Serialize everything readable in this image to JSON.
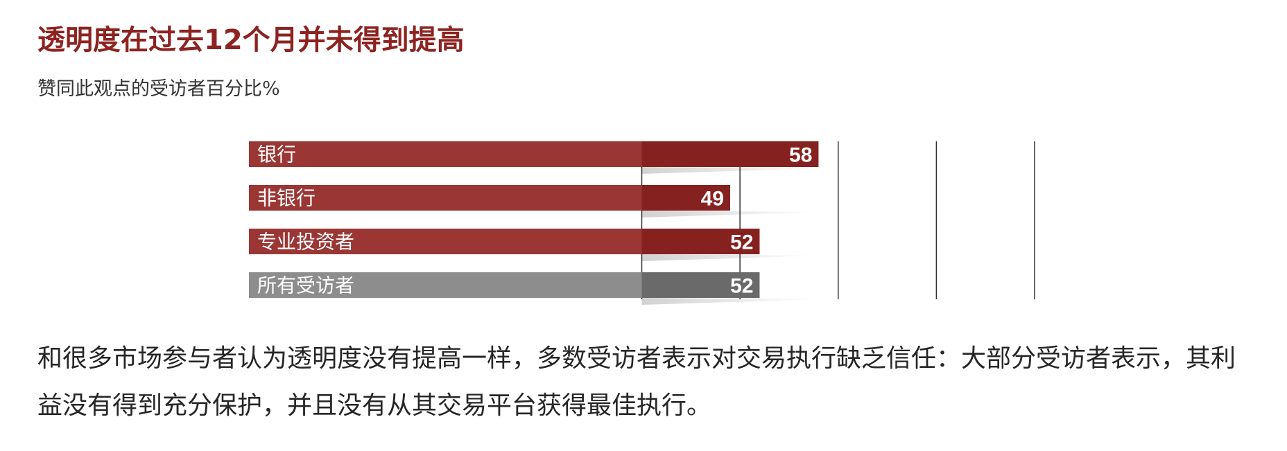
{
  "chart_data": {
    "type": "bar",
    "orientation": "horizontal",
    "title": "透明度在过去12个月并未得到提高",
    "subtitle": "赞同此观点的受访者百分比%",
    "categories": [
      "银行",
      "非银行",
      "专业投资者",
      "所有受访者"
    ],
    "values": [
      58,
      49,
      52,
      52
    ],
    "xlim": [
      0,
      80
    ],
    "grid": true,
    "colors": {
      "bar": "#9a3735",
      "bar_dark": "#85211f",
      "total": "#8d8d8d",
      "total_dark": "#6a6a6a",
      "grid": "#333333"
    }
  },
  "body_text": "和很多市场参与者认为透明度没有提高一样，多数受访者表示对交易执行缺乏信任：大部分受访者表示，其利益没有得到充分保护，并且没有从其交易平台获得最佳执行。"
}
